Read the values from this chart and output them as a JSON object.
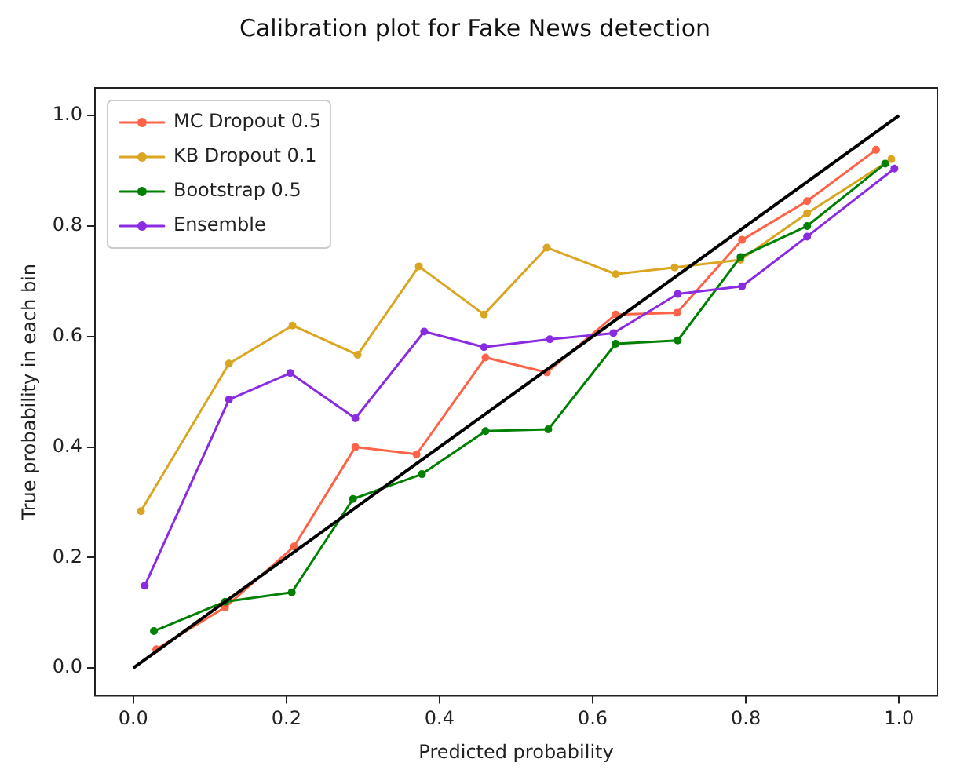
{
  "chart_data": {
    "type": "line",
    "title": "Calibration plot for Fake News detection",
    "xlabel": "Predicted probability",
    "ylabel": "True probability in each bin",
    "xlim": [
      -0.05,
      1.05
    ],
    "ylim": [
      -0.05,
      1.05
    ],
    "xticks": [
      {
        "value": 0,
        "label": "0.0"
      },
      0.2,
      0.4,
      0.6,
      0.8,
      {
        "value": 1,
        "label": "1.0"
      }
    ],
    "yticks": [
      {
        "value": 0,
        "label": "0.0"
      },
      0.2,
      0.4,
      0.6,
      0.8,
      {
        "value": 1,
        "label": "1.0"
      }
    ],
    "grid": false,
    "legend": "top left",
    "marker": "circle",
    "line_style": "solid",
    "series": [
      {
        "name": "MC Dropout 0.5",
        "color": "#ff6347",
        "x": [
          0.03,
          0.12,
          0.21,
          0.29,
          0.37,
          0.46,
          0.54,
          0.63,
          0.71,
          0.795,
          0.88,
          0.97
        ],
        "values": [
          0.034,
          0.11,
          0.22,
          0.4,
          0.387,
          0.562,
          0.535,
          0.64,
          0.643,
          0.775,
          0.845,
          0.938
        ]
      },
      {
        "name": "KB Dropout 0.1",
        "color": "#daa520",
        "x": [
          0.01,
          0.125,
          0.208,
          0.293,
          0.373,
          0.458,
          0.54,
          0.63,
          0.707,
          0.793,
          0.88,
          0.99
        ],
        "values": [
          0.284,
          0.551,
          0.62,
          0.567,
          0.727,
          0.64,
          0.761,
          0.713,
          0.725,
          0.739,
          0.823,
          0.921
        ]
      },
      {
        "name": "Bootstrap 0.5",
        "color": "#008000",
        "x": [
          0.027,
          0.12,
          0.207,
          0.287,
          0.377,
          0.46,
          0.542,
          0.63,
          0.711,
          0.793,
          0.88,
          0.982
        ],
        "values": [
          0.067,
          0.12,
          0.137,
          0.306,
          0.351,
          0.429,
          0.432,
          0.587,
          0.593,
          0.744,
          0.8,
          0.913
        ]
      },
      {
        "name": "Ensemble",
        "color": "#8a2be2",
        "x": [
          0.015,
          0.125,
          0.205,
          0.29,
          0.38,
          0.458,
          0.544,
          0.627,
          0.711,
          0.795,
          0.88,
          0.994
        ],
        "values": [
          0.149,
          0.486,
          0.534,
          0.452,
          0.609,
          0.581,
          0.595,
          0.606,
          0.677,
          0.691,
          0.781,
          0.904
        ]
      },
      {
        "color": "#000000",
        "marker": "none",
        "x": [
          0,
          1
        ],
        "values": [
          0,
          1
        ]
      }
    ]
  }
}
